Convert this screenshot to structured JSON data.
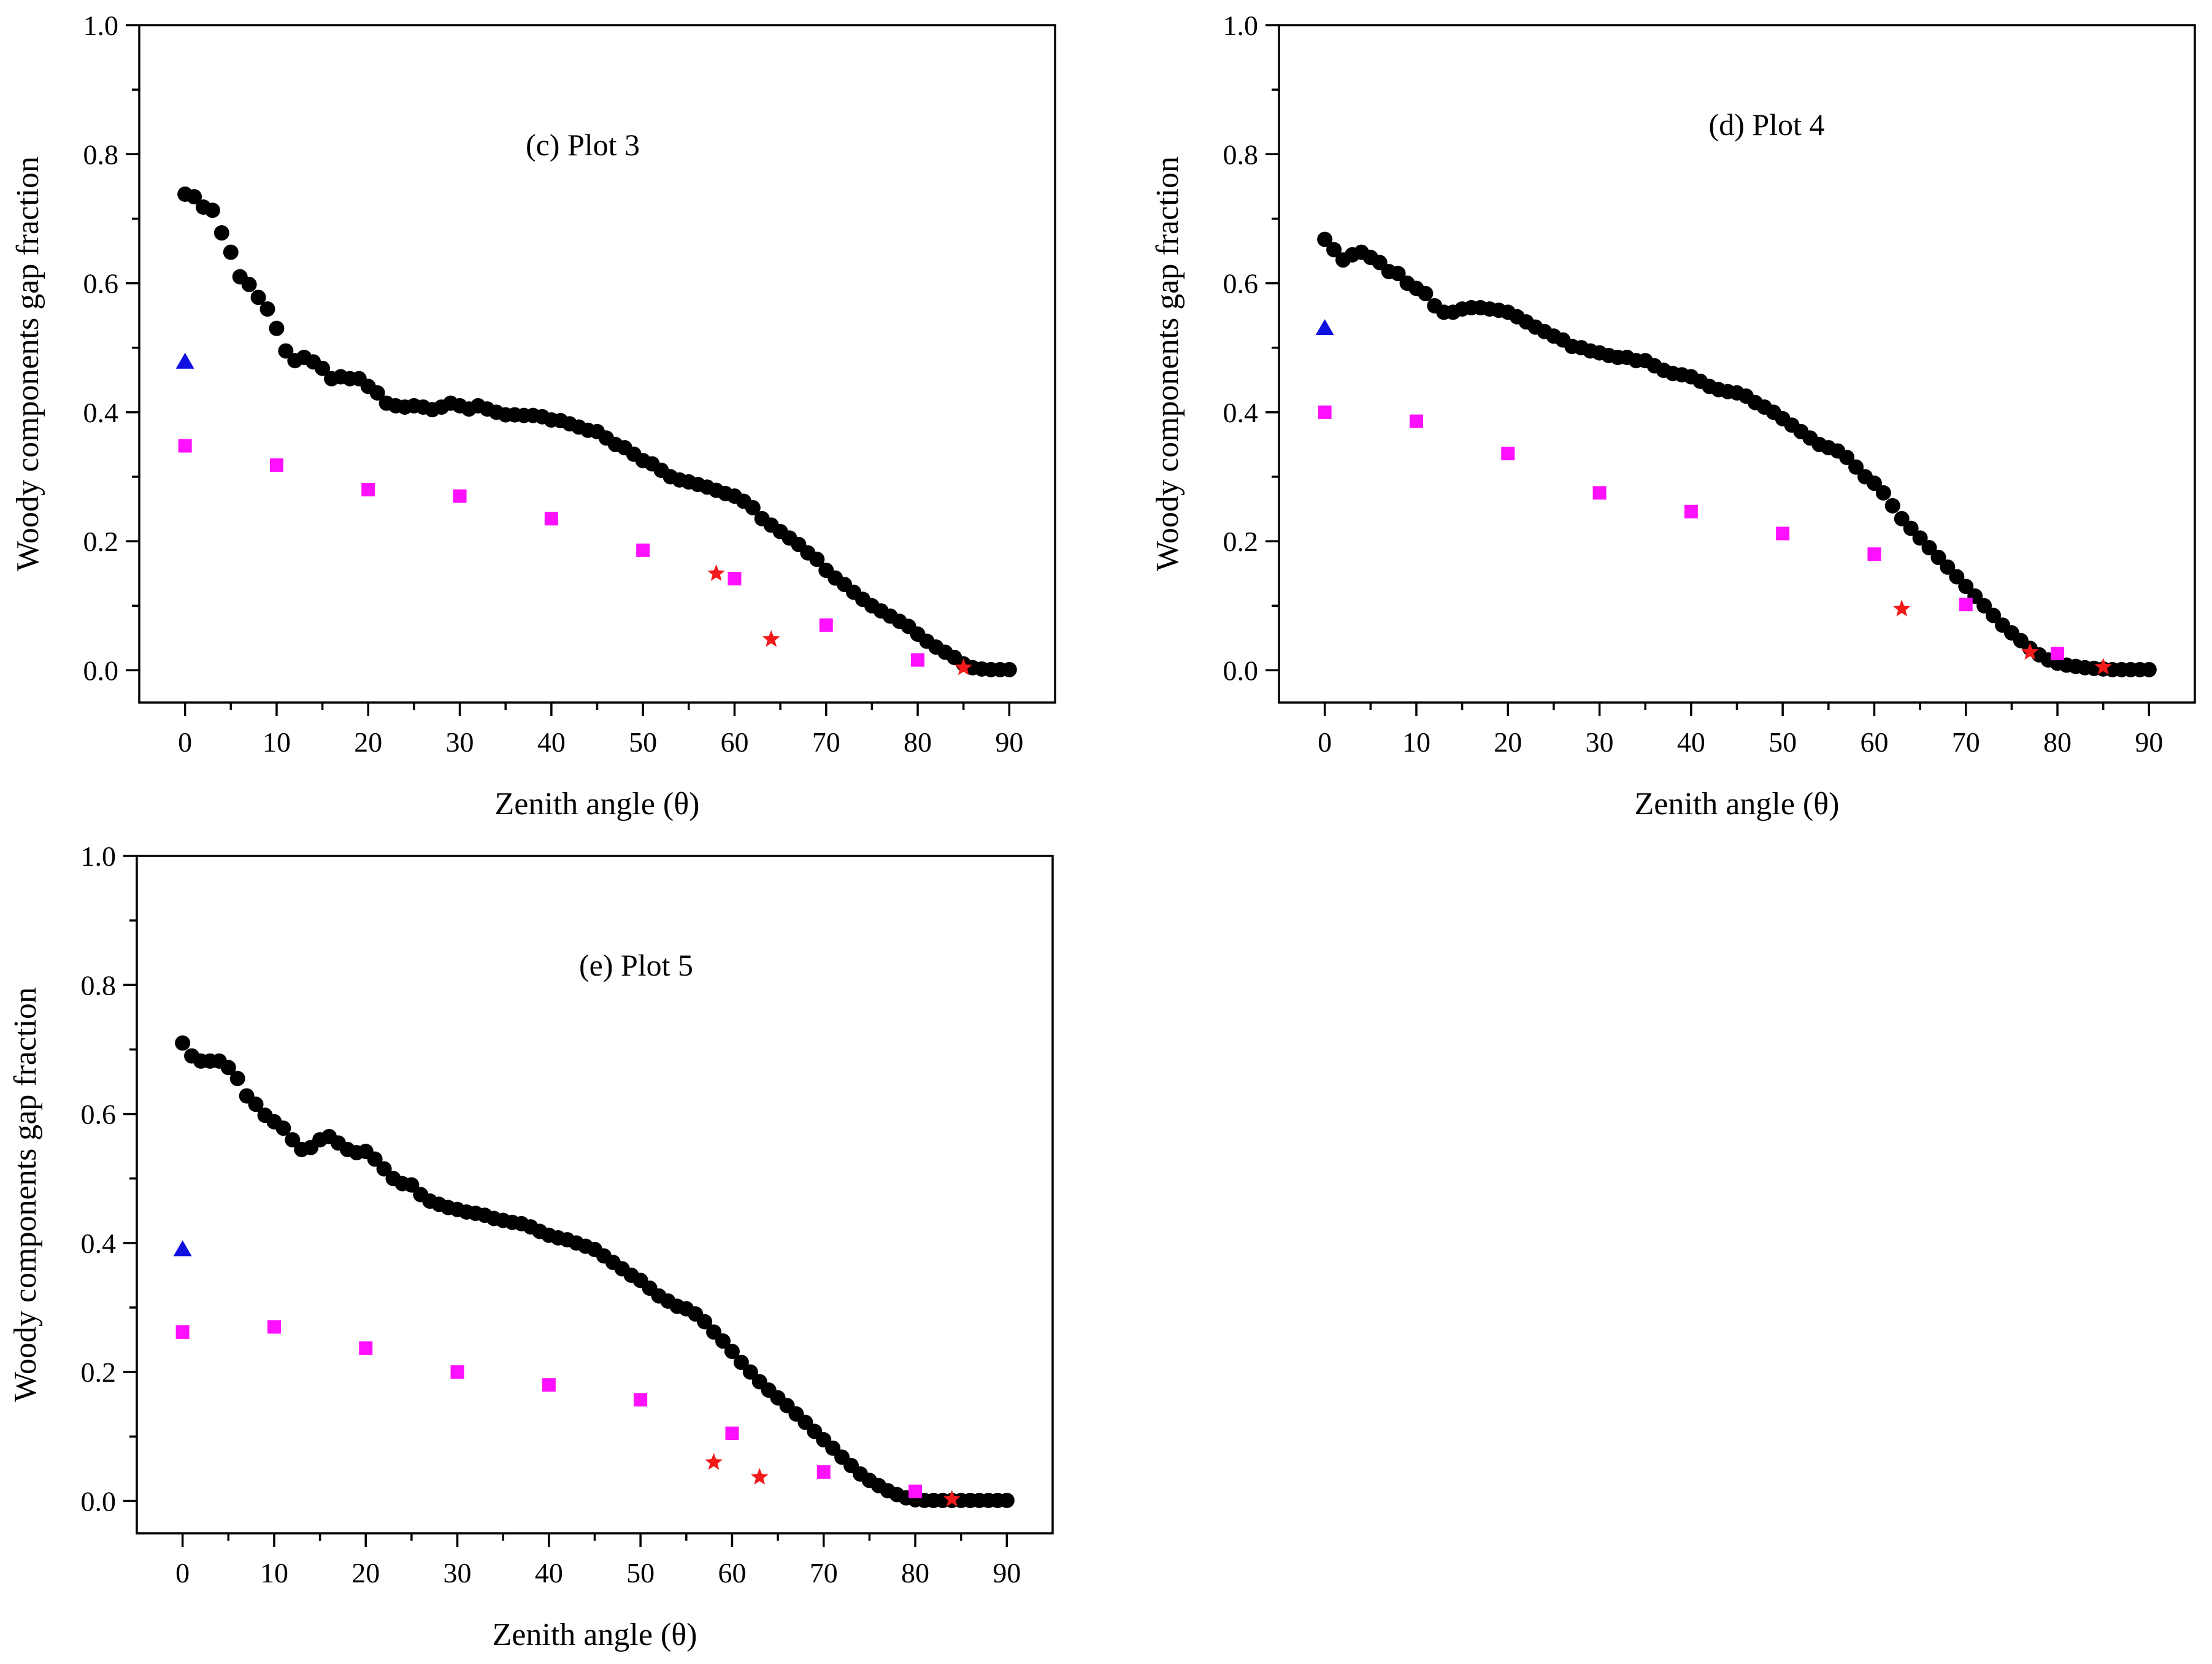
{
  "colors": {
    "measured": "#000000",
    "triangle": "#1010e0",
    "square": "#ff10ff",
    "star": "#f21a1a"
  },
  "chart_data": [
    {
      "type": "scatter",
      "title": "(c)  Plot 3",
      "xlabel": "Zenith angle (θ)",
      "ylabel": "Woody components gap fraction",
      "xlim": [
        -5,
        95
      ],
      "ylim": [
        -0.05,
        1.0
      ],
      "xticks": [
        0,
        10,
        20,
        30,
        40,
        50,
        60,
        70,
        80,
        90
      ],
      "yticks": [
        0.0,
        0.2,
        0.4,
        0.6,
        0.8,
        1.0
      ],
      "xtick_labels": [
        "0",
        "10",
        "20",
        "30",
        "40",
        "50",
        "60",
        "70",
        "80",
        "90"
      ],
      "ytick_labels": [
        "0.0",
        "0.2",
        "0.4",
        "0.6",
        "0.8",
        "1.0"
      ],
      "series": [
        {
          "name": "circles",
          "marker": "circle",
          "x": [
            0,
            1,
            2,
            3,
            4,
            5,
            6,
            7,
            8,
            9,
            10,
            11,
            12,
            13,
            14,
            15,
            16,
            17,
            18,
            19,
            20,
            21,
            22,
            23,
            24,
            25,
            26,
            27,
            28,
            29,
            30,
            31,
            32,
            33,
            34,
            35,
            36,
            37,
            38,
            39,
            40,
            41,
            42,
            43,
            44,
            45,
            46,
            47,
            48,
            49,
            50,
            51,
            52,
            53,
            54,
            55,
            56,
            57,
            58,
            59,
            60,
            61,
            62,
            63,
            64,
            65,
            66,
            67,
            68,
            69,
            70,
            71,
            72,
            73,
            74,
            75,
            76,
            77,
            78,
            79,
            80,
            81,
            82,
            83,
            84,
            85,
            86,
            87,
            88,
            89,
            90
          ],
          "y": [
            0.738,
            0.734,
            0.718,
            0.713,
            0.678,
            0.648,
            0.61,
            0.598,
            0.578,
            0.56,
            0.53,
            0.495,
            0.48,
            0.485,
            0.478,
            0.468,
            0.452,
            0.455,
            0.452,
            0.452,
            0.44,
            0.43,
            0.414,
            0.41,
            0.408,
            0.41,
            0.408,
            0.404,
            0.408,
            0.414,
            0.41,
            0.405,
            0.41,
            0.405,
            0.4,
            0.396,
            0.396,
            0.395,
            0.395,
            0.393,
            0.388,
            0.387,
            0.382,
            0.377,
            0.372,
            0.37,
            0.36,
            0.35,
            0.345,
            0.335,
            0.325,
            0.32,
            0.31,
            0.3,
            0.295,
            0.292,
            0.288,
            0.284,
            0.279,
            0.274,
            0.27,
            0.262,
            0.252,
            0.235,
            0.225,
            0.215,
            0.205,
            0.195,
            0.182,
            0.172,
            0.155,
            0.143,
            0.133,
            0.121,
            0.11,
            0.1,
            0.092,
            0.084,
            0.076,
            0.068,
            0.056,
            0.045,
            0.036,
            0.028,
            0.02,
            0.01,
            0.004,
            0.002,
            0.001,
            0.001,
            0.001
          ]
        },
        {
          "name": "triangle",
          "marker": "triangle",
          "x": [
            0
          ],
          "y": [
            0.478
          ]
        },
        {
          "name": "squares",
          "marker": "square",
          "x": [
            0,
            10,
            20,
            30,
            40,
            50,
            60,
            70,
            80
          ],
          "y": [
            0.348,
            0.318,
            0.28,
            0.27,
            0.235,
            0.186,
            0.142,
            0.07,
            0.016
          ]
        },
        {
          "name": "stars",
          "marker": "star",
          "x": [
            58,
            64,
            85
          ],
          "y": [
            0.15,
            0.048,
            0.004
          ]
        }
      ]
    },
    {
      "type": "scatter",
      "title": "(d)  Plot 4",
      "xlabel": "Zenith angle (θ)",
      "ylabel": "Woody components gap fraction",
      "xlim": [
        -5,
        95
      ],
      "ylim": [
        -0.05,
        1.0
      ],
      "xticks": [
        0,
        10,
        20,
        30,
        40,
        50,
        60,
        70,
        80,
        90
      ],
      "yticks": [
        0.0,
        0.2,
        0.4,
        0.6,
        0.8,
        1.0
      ],
      "xtick_labels": [
        "0",
        "10",
        "20",
        "30",
        "40",
        "50",
        "60",
        "70",
        "80",
        "90"
      ],
      "ytick_labels": [
        "0.0",
        "0.2",
        "0.4",
        "0.6",
        "0.8",
        "1.0"
      ],
      "series": [
        {
          "name": "circles",
          "marker": "circle",
          "x": [
            0,
            1,
            2,
            3,
            4,
            5,
            6,
            7,
            8,
            9,
            10,
            11,
            12,
            13,
            14,
            15,
            16,
            17,
            18,
            19,
            20,
            21,
            22,
            23,
            24,
            25,
            26,
            27,
            28,
            29,
            30,
            31,
            32,
            33,
            34,
            35,
            36,
            37,
            38,
            39,
            40,
            41,
            42,
            43,
            44,
            45,
            46,
            47,
            48,
            49,
            50,
            51,
            52,
            53,
            54,
            55,
            56,
            57,
            58,
            59,
            60,
            61,
            62,
            63,
            64,
            65,
            66,
            67,
            68,
            69,
            70,
            71,
            72,
            73,
            74,
            75,
            76,
            77,
            78,
            79,
            80,
            81,
            82,
            83,
            84,
            85,
            86,
            87,
            88,
            89,
            90
          ],
          "y": [
            0.668,
            0.652,
            0.636,
            0.644,
            0.648,
            0.64,
            0.632,
            0.618,
            0.615,
            0.6,
            0.592,
            0.584,
            0.565,
            0.555,
            0.555,
            0.56,
            0.562,
            0.562,
            0.56,
            0.558,
            0.555,
            0.548,
            0.54,
            0.532,
            0.525,
            0.518,
            0.512,
            0.502,
            0.5,
            0.495,
            0.492,
            0.488,
            0.485,
            0.485,
            0.48,
            0.48,
            0.472,
            0.465,
            0.46,
            0.458,
            0.455,
            0.448,
            0.44,
            0.435,
            0.432,
            0.43,
            0.425,
            0.415,
            0.408,
            0.4,
            0.39,
            0.38,
            0.37,
            0.36,
            0.35,
            0.345,
            0.34,
            0.33,
            0.315,
            0.3,
            0.29,
            0.275,
            0.255,
            0.235,
            0.22,
            0.205,
            0.19,
            0.175,
            0.16,
            0.145,
            0.13,
            0.115,
            0.1,
            0.085,
            0.07,
            0.058,
            0.046,
            0.034,
            0.024,
            0.016,
            0.011,
            0.008,
            0.006,
            0.004,
            0.003,
            0.002,
            0.001,
            0.001,
            0.001,
            0.001,
            0.001
          ]
        },
        {
          "name": "triangle",
          "marker": "triangle",
          "x": [
            0
          ],
          "y": [
            0.53
          ]
        },
        {
          "name": "squares",
          "marker": "square",
          "x": [
            0,
            10,
            20,
            30,
            40,
            50,
            60,
            70,
            80
          ],
          "y": [
            0.4,
            0.386,
            0.336,
            0.275,
            0.246,
            0.212,
            0.18,
            0.102,
            0.026
          ]
        },
        {
          "name": "stars",
          "marker": "star",
          "x": [
            63,
            77,
            85
          ],
          "y": [
            0.095,
            0.028,
            0.005
          ]
        }
      ]
    },
    {
      "type": "scatter",
      "title": "(e)  Plot 5",
      "xlabel": "Zenith angle (θ)",
      "ylabel": "Woody components gap fraction",
      "xlim": [
        -5,
        95
      ],
      "ylim": [
        -0.05,
        1.0
      ],
      "xticks": [
        0,
        10,
        20,
        30,
        40,
        50,
        60,
        70,
        80,
        90
      ],
      "yticks": [
        0.0,
        0.2,
        0.4,
        0.6,
        0.8,
        1.0
      ],
      "xtick_labels": [
        "0",
        "10",
        "20",
        "30",
        "40",
        "50",
        "60",
        "70",
        "80",
        "90"
      ],
      "ytick_labels": [
        "0.0",
        "0.2",
        "0.4",
        "0.6",
        "0.8",
        "1.0"
      ],
      "series": [
        {
          "name": "circles",
          "marker": "circle",
          "x": [
            0,
            1,
            2,
            3,
            4,
            5,
            6,
            7,
            8,
            9,
            10,
            11,
            12,
            13,
            14,
            15,
            16,
            17,
            18,
            19,
            20,
            21,
            22,
            23,
            24,
            25,
            26,
            27,
            28,
            29,
            30,
            31,
            32,
            33,
            34,
            35,
            36,
            37,
            38,
            39,
            40,
            41,
            42,
            43,
            44,
            45,
            46,
            47,
            48,
            49,
            50,
            51,
            52,
            53,
            54,
            55,
            56,
            57,
            58,
            59,
            60,
            61,
            62,
            63,
            64,
            65,
            66,
            67,
            68,
            69,
            70,
            71,
            72,
            73,
            74,
            75,
            76,
            77,
            78,
            79,
            80,
            81,
            82,
            83,
            84,
            85,
            86,
            87,
            88,
            89,
            90
          ],
          "y": [
            0.71,
            0.69,
            0.682,
            0.682,
            0.682,
            0.672,
            0.655,
            0.628,
            0.615,
            0.598,
            0.588,
            0.578,
            0.56,
            0.545,
            0.548,
            0.56,
            0.565,
            0.555,
            0.545,
            0.54,
            0.542,
            0.53,
            0.515,
            0.5,
            0.492,
            0.49,
            0.475,
            0.465,
            0.46,
            0.455,
            0.452,
            0.448,
            0.446,
            0.443,
            0.438,
            0.435,
            0.432,
            0.43,
            0.425,
            0.418,
            0.412,
            0.408,
            0.405,
            0.4,
            0.395,
            0.39,
            0.38,
            0.37,
            0.36,
            0.35,
            0.342,
            0.33,
            0.318,
            0.31,
            0.302,
            0.298,
            0.29,
            0.278,
            0.262,
            0.248,
            0.232,
            0.215,
            0.2,
            0.185,
            0.172,
            0.16,
            0.148,
            0.135,
            0.122,
            0.108,
            0.095,
            0.082,
            0.068,
            0.055,
            0.042,
            0.032,
            0.024,
            0.016,
            0.01,
            0.005,
            0.002,
            0.001,
            0.001,
            0.001,
            0.001,
            0.001,
            0.001,
            0.001,
            0.001,
            0.001,
            0.001
          ]
        },
        {
          "name": "triangle",
          "marker": "triangle",
          "x": [
            0
          ],
          "y": [
            0.39
          ]
        },
        {
          "name": "squares",
          "marker": "square",
          "x": [
            0,
            10,
            20,
            30,
            40,
            50,
            60,
            70,
            80
          ],
          "y": [
            0.262,
            0.27,
            0.237,
            0.2,
            0.18,
            0.157,
            0.105,
            0.045,
            0.015
          ]
        },
        {
          "name": "stars",
          "marker": "star",
          "x": [
            58,
            63,
            84
          ],
          "y": [
            0.06,
            0.037,
            0.003
          ]
        }
      ]
    }
  ]
}
